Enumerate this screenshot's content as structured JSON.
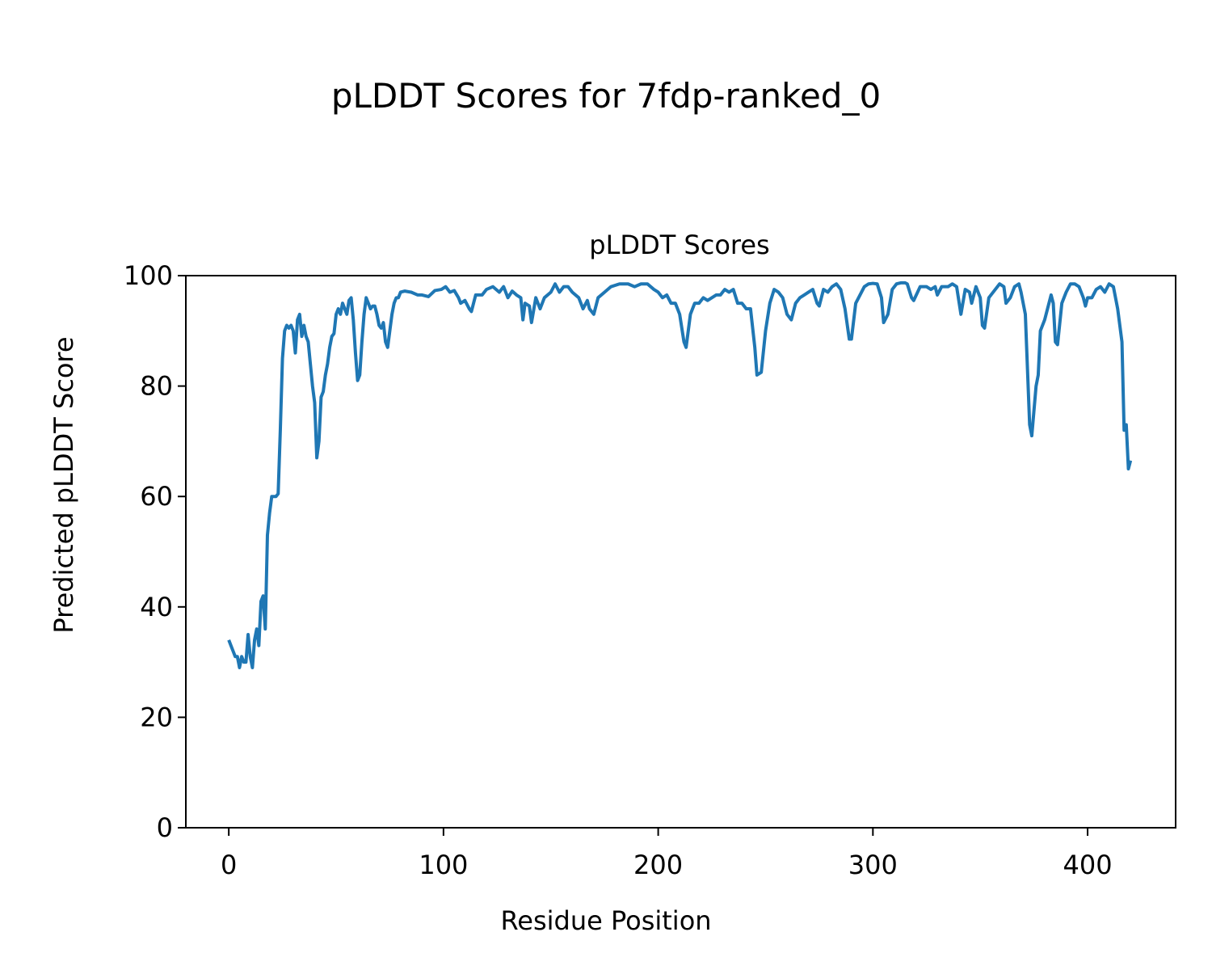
{
  "chart_data": {
    "type": "line",
    "title": "pLDDT Scores for 7fdp-ranked_0",
    "subtitle": "pLDDT Scores",
    "x_label": "Residue Position",
    "y_label": "Predicted pLDDT Score",
    "x": [
      0,
      1,
      2,
      3,
      4,
      5,
      6,
      7,
      8,
      9,
      10,
      11,
      12,
      13,
      14,
      15,
      16,
      17,
      18,
      19,
      20,
      21,
      22,
      23,
      24,
      25,
      26,
      27,
      28,
      29,
      30,
      31,
      32,
      33,
      34,
      35,
      36,
      37,
      38,
      39,
      40,
      41,
      42,
      43,
      44,
      45,
      46,
      47,
      48,
      49,
      50,
      51,
      52,
      53,
      54,
      55,
      56,
      57,
      58,
      59,
      60,
      61,
      62,
      63,
      64,
      65,
      66,
      67,
      68,
      69,
      70,
      71,
      72,
      73,
      74,
      75,
      76,
      77,
      78,
      79,
      80,
      82,
      85,
      88,
      90,
      93,
      96,
      99,
      101,
      103,
      105,
      107,
      108,
      110,
      112,
      113,
      115,
      118,
      120,
      123,
      126,
      128,
      130,
      132,
      134,
      136,
      137,
      138,
      140,
      141,
      143,
      145,
      147,
      150,
      152,
      154,
      156,
      158,
      160,
      163,
      165,
      167,
      168,
      170,
      172,
      175,
      178,
      182,
      186,
      189,
      192,
      195,
      198,
      200,
      202,
      204,
      206,
      208,
      210,
      212,
      213,
      215,
      217,
      219,
      221,
      223,
      225,
      227,
      229,
      231,
      233,
      235,
      237,
      239,
      241,
      243,
      245,
      246,
      248,
      250,
      252,
      254,
      256,
      258,
      260,
      262,
      264,
      266,
      268,
      270,
      272,
      274,
      275,
      277,
      279,
      281,
      283,
      285,
      287,
      289,
      290,
      292,
      294,
      296,
      298,
      300,
      302,
      304,
      305,
      307,
      309,
      311,
      313,
      315,
      316,
      318,
      319,
      322,
      325,
      327,
      329,
      330,
      332,
      335,
      337,
      339,
      341,
      343,
      345,
      346,
      348,
      350,
      351,
      352,
      354,
      357,
      359,
      361,
      362,
      364,
      366,
      368,
      369,
      371,
      373,
      374,
      376,
      377,
      378,
      380,
      382,
      383,
      384,
      385,
      386,
      388,
      390,
      392,
      394,
      396,
      398,
      399,
      400,
      402,
      404,
      406,
      408,
      410,
      412,
      414,
      416,
      417,
      418,
      419,
      420
    ],
    "series": [
      {
        "name": "pLDDT",
        "color": "#1f77b4",
        "values": [
          34,
          33,
          32,
          31,
          31,
          29,
          31,
          30,
          30,
          35,
          31,
          29,
          34,
          36,
          33,
          41,
          42,
          36,
          53,
          57,
          60,
          60,
          60,
          60.5,
          72,
          85,
          90,
          91,
          90.5,
          91,
          90,
          86,
          92,
          93,
          89,
          91,
          89,
          88,
          84,
          80,
          77,
          67,
          70,
          78,
          79,
          82,
          84,
          87,
          89,
          89.5,
          93,
          94,
          93,
          95,
          94,
          93,
          95.5,
          96,
          92,
          86,
          81,
          82,
          88,
          93,
          96,
          95,
          94,
          94.5,
          94.5,
          93,
          91,
          90.5,
          91.5,
          88,
          87,
          90,
          93,
          95,
          96,
          96,
          97,
          97.2,
          97,
          96.5,
          96.5,
          96.2,
          97.3,
          97.5,
          98,
          97,
          97.3,
          96,
          95,
          95.5,
          94,
          93.5,
          96.5,
          96.5,
          97.5,
          98,
          97,
          98,
          96,
          97.2,
          96.5,
          96,
          92,
          95,
          94.5,
          91.5,
          96,
          94,
          96,
          97,
          98.5,
          97,
          98,
          98,
          97,
          96,
          94,
          95.5,
          94,
          93,
          96,
          97,
          98,
          98.5,
          98.5,
          98,
          98.5,
          98.5,
          97.5,
          97,
          96,
          96.5,
          95,
          95,
          93,
          88,
          87,
          93,
          95,
          95,
          96,
          95.5,
          96,
          96.5,
          96.5,
          97.5,
          97,
          97.5,
          95,
          95,
          94,
          94,
          87,
          82,
          82.5,
          90,
          95,
          97.5,
          97,
          96,
          93,
          92,
          95,
          96,
          96.5,
          97,
          97.5,
          95,
          94.5,
          97.5,
          97,
          98,
          98.5,
          97.5,
          94,
          88.5,
          88.5,
          95,
          96.5,
          98,
          98.5,
          98.6,
          98.5,
          96,
          91.5,
          93,
          97.5,
          98.5,
          98.7,
          98.7,
          98.5,
          96,
          95.5,
          98,
          98,
          97.5,
          98,
          96.5,
          98,
          98,
          98.5,
          98,
          93,
          97.5,
          97,
          95,
          98,
          96,
          91,
          90.5,
          96,
          97.5,
          98.5,
          98,
          95,
          96,
          98,
          98.5,
          97,
          93,
          73,
          71,
          80,
          82,
          90,
          92,
          95,
          96.5,
          95,
          88,
          87.5,
          95,
          97,
          98.5,
          98.5,
          98,
          96,
          94.5,
          96,
          96,
          97.5,
          98,
          97,
          98.5,
          98,
          94,
          88,
          72,
          73,
          65,
          66.5
        ]
      }
    ],
    "xlim": [
      -20,
      441
    ],
    "xticks": [
      0,
      100,
      200,
      300,
      400
    ],
    "ylim": [
      0,
      100
    ],
    "yticks": [
      0,
      20,
      40,
      60,
      80,
      100
    ]
  }
}
